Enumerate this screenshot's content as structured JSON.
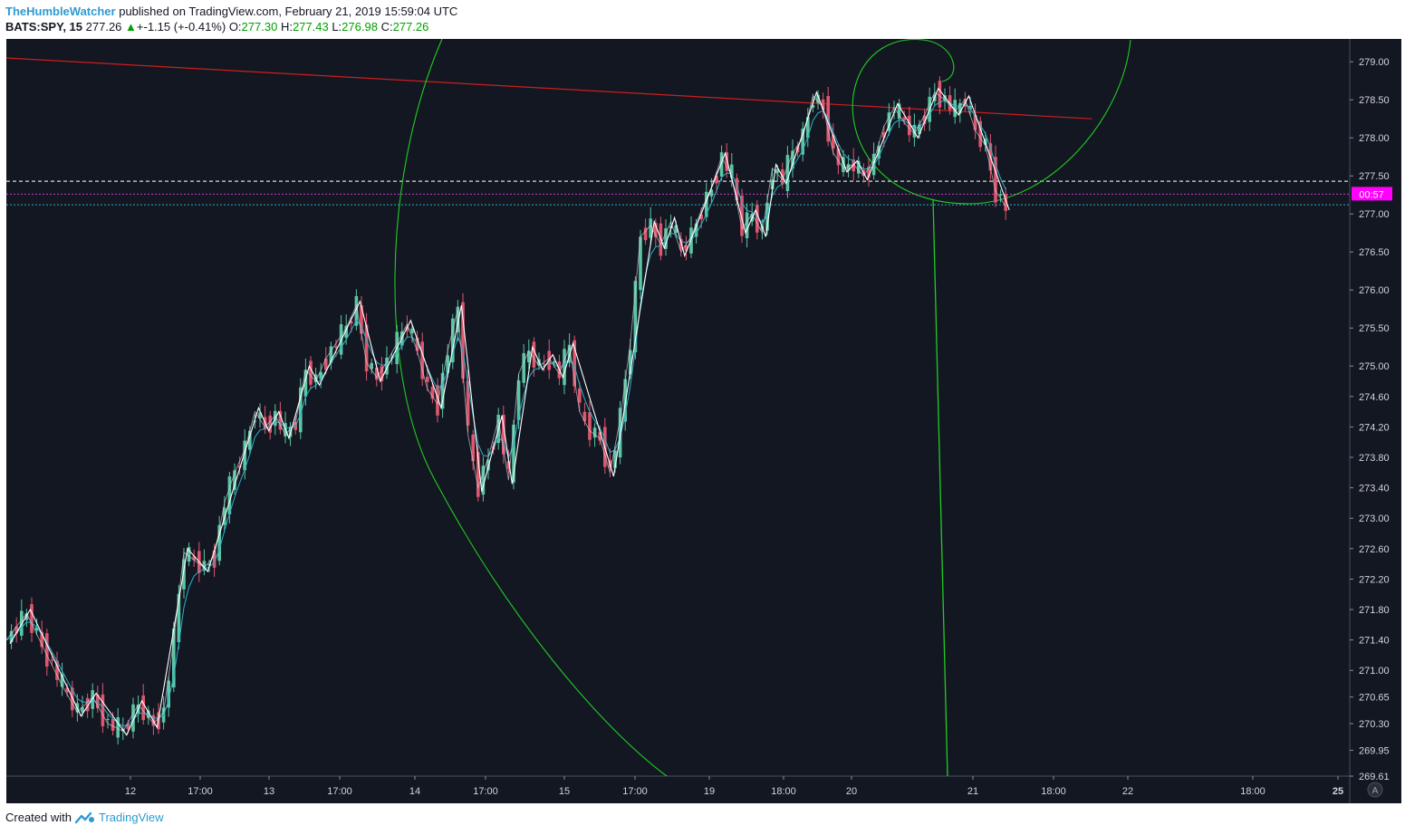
{
  "header": {
    "author": "TheHumbleWatcher",
    "published_text": "published on TradingView.com, February 21, 2019 15:59:04 UTC"
  },
  "symbol_bar": {
    "symbol": "BATS:SPY, 15",
    "last": "277.26",
    "change": "+-1.15 (+-0.41%)",
    "o_label": "O:",
    "o": "277.30",
    "h_label": "H:",
    "h": "277.43",
    "l_label": "L:",
    "l": "276.98",
    "c_label": "C:",
    "c": "277.26"
  },
  "footer": {
    "created_with": "Created with",
    "brand": "TradingView"
  },
  "colors": {
    "background": "#131722",
    "up": "#5bc6a3",
    "down": "#e0566e",
    "trend": "#cc1f1f",
    "spiral": "#22cc22",
    "zigzag": "#ffffff",
    "signal": "#2ab3c9",
    "price_label": "#ff00ff"
  },
  "chart_data": {
    "type": "candlestick",
    "symbol": "BATS:SPY",
    "interval": "15",
    "price_axis_ticks": [
      "279.00",
      "278.50",
      "278.00",
      "277.50",
      "277.00",
      "276.50",
      "276.00",
      "275.50",
      "275.00",
      "274.60",
      "274.20",
      "273.80",
      "273.40",
      "273.00",
      "272.60",
      "272.20",
      "271.80",
      "271.40",
      "271.00",
      "270.65",
      "270.30",
      "269.95",
      "269.61"
    ],
    "time_axis_ticks": [
      "12",
      "17:00",
      "13",
      "17:00",
      "14",
      "17:00",
      "15",
      "17:00",
      "19",
      "18:00",
      "20",
      "21",
      "18:00",
      "22",
      "18:00",
      "25"
    ],
    "current_price_label": "00:57",
    "current_price": 277.26,
    "countdown_axis_marker": "A",
    "ylim": [
      269.61,
      279.3
    ],
    "close_path": [
      [
        0,
        271.4
      ],
      [
        4,
        271.75
      ],
      [
        8,
        271.2
      ],
      [
        11,
        270.8
      ],
      [
        14,
        270.45
      ],
      [
        17,
        270.65
      ],
      [
        20,
        270.3
      ],
      [
        23,
        270.2
      ],
      [
        26,
        270.55
      ],
      [
        29,
        270.3
      ],
      [
        31,
        270.45
      ],
      [
        33,
        271.4
      ],
      [
        35,
        272.55
      ],
      [
        37,
        272.45
      ],
      [
        39,
        272.35
      ],
      [
        41,
        272.5
      ],
      [
        43,
        273.2
      ],
      [
        45,
        273.6
      ],
      [
        47,
        273.9
      ],
      [
        49,
        274.4
      ],
      [
        51,
        274.2
      ],
      [
        53,
        274.35
      ],
      [
        55,
        274.1
      ],
      [
        57,
        274.25
      ],
      [
        59,
        274.95
      ],
      [
        61,
        274.8
      ],
      [
        63,
        275.1
      ],
      [
        65,
        275.3
      ],
      [
        67,
        275.5
      ],
      [
        69,
        275.8
      ],
      [
        71,
        275.05
      ],
      [
        73,
        274.85
      ],
      [
        75,
        275.05
      ],
      [
        77,
        275.3
      ],
      [
        79,
        275.55
      ],
      [
        81,
        275.2
      ],
      [
        83,
        274.7
      ],
      [
        85,
        274.5
      ],
      [
        87,
        275.2
      ],
      [
        89,
        275.75
      ],
      [
        91,
        274.1
      ],
      [
        93,
        273.4
      ],
      [
        95,
        273.8
      ],
      [
        97,
        274.3
      ],
      [
        99,
        273.5
      ],
      [
        101,
        274.9
      ],
      [
        103,
        275.2
      ],
      [
        105,
        275.0
      ],
      [
        107,
        275.1
      ],
      [
        109,
        274.9
      ],
      [
        111,
        275.25
      ],
      [
        113,
        274.4
      ],
      [
        115,
        274.15
      ],
      [
        117,
        274.05
      ],
      [
        119,
        273.6
      ],
      [
        121,
        274.3
      ],
      [
        123,
        275.3
      ],
      [
        125,
        276.7
      ],
      [
        127,
        276.85
      ],
      [
        129,
        276.6
      ],
      [
        131,
        276.9
      ],
      [
        133,
        276.5
      ],
      [
        135,
        276.7
      ],
      [
        137,
        277.05
      ],
      [
        139,
        277.35
      ],
      [
        141,
        277.75
      ],
      [
        143,
        277.5
      ],
      [
        145,
        276.8
      ],
      [
        147,
        277.0
      ],
      [
        149,
        276.75
      ],
      [
        151,
        277.6
      ],
      [
        153,
        277.45
      ],
      [
        155,
        277.8
      ],
      [
        157,
        278.0
      ],
      [
        159,
        278.55
      ],
      [
        161,
        278.4
      ],
      [
        163,
        277.8
      ],
      [
        165,
        277.6
      ],
      [
        167,
        277.65
      ],
      [
        169,
        277.5
      ],
      [
        171,
        277.7
      ],
      [
        173,
        278.15
      ],
      [
        175,
        278.4
      ],
      [
        177,
        278.2
      ],
      [
        179,
        278.05
      ],
      [
        181,
        278.3
      ],
      [
        183,
        278.6
      ],
      [
        185,
        278.5
      ],
      [
        187,
        278.35
      ],
      [
        189,
        278.5
      ],
      [
        191,
        278.1
      ],
      [
        193,
        277.9
      ],
      [
        195,
        277.3
      ],
      [
        197,
        277.1
      ]
    ],
    "trend_line": {
      "start": [
        0,
        279.05
      ],
      "end": [
        214,
        278.25
      ]
    },
    "horizontal_lines": [
      277.43,
      277.26,
      277.12
    ]
  }
}
